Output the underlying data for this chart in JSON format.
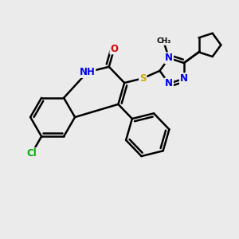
{
  "bg_color": "#ebebeb",
  "bond_color": "#000000",
  "bond_width": 1.8,
  "atom_colors": {
    "C": "#000000",
    "N": "#0000ee",
    "O": "#dd0000",
    "S": "#ccaa00",
    "Cl": "#00aa00",
    "H": "#0000ee"
  },
  "font_size": 8.5
}
